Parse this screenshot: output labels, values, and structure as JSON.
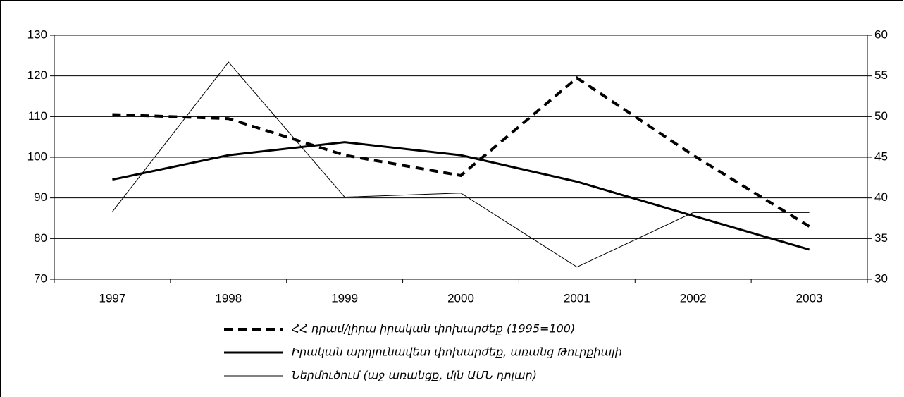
{
  "chart_data": {
    "type": "line",
    "categories": [
      "1997",
      "1998",
      "1999",
      "2000",
      "2001",
      "2002",
      "2003"
    ],
    "ylim": [
      70,
      130
    ],
    "yticks": [
      70,
      80,
      90,
      100,
      110,
      120,
      130
    ],
    "y2lim": [
      30,
      60
    ],
    "y2ticks": [
      30,
      35,
      40,
      45,
      50,
      55,
      60
    ],
    "grid": true,
    "series": [
      {
        "name": "ՀՀ դրամ/լիրա իրական փոխարժեք (1995=100)",
        "color": "#000000",
        "style": "dashed",
        "width": 4,
        "values": [
          110.5,
          109.5,
          100.5,
          95.5,
          119.5,
          100.5,
          83
        ]
      },
      {
        "name": "Իրական արդյունավետ փոխարժեք, առանց Թուրքիայի",
        "color": "#000000",
        "style": "solid",
        "width": 3,
        "values": [
          94.5,
          100.5,
          103.7,
          100.5,
          94,
          85.6,
          77.3
        ]
      },
      {
        "name": "Ներմուծում (աջ առանցք, մլն ԱՄՆ դոլար)",
        "color": "#000000",
        "style": "solid",
        "width": 1,
        "axis": "y2",
        "values": [
          38.3,
          56.7,
          40.1,
          40.6,
          31.5,
          38.2,
          38.2
        ]
      }
    ]
  }
}
